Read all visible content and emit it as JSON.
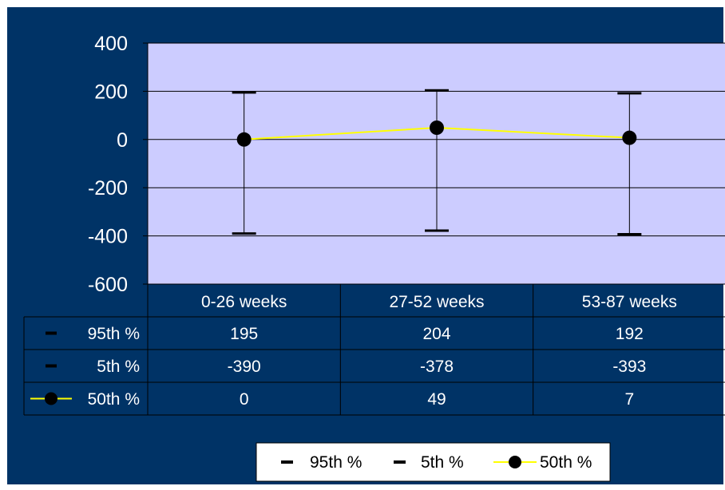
{
  "colors": {
    "background": "#003366",
    "plot_area": "#CCCCFF",
    "gridline": "#000000",
    "series_line": "#FFFF00",
    "marker": "#000000",
    "text": "#FFFFFF",
    "legend_bg": "#FFFFFF",
    "legend_text": "#000000"
  },
  "chart_data": {
    "type": "line",
    "title": "",
    "xlabel": "",
    "ylabel": "",
    "ylim": [
      -600,
      400
    ],
    "yticks": [
      "400",
      "200",
      "0",
      "-200",
      "-400",
      "-600"
    ],
    "grid": true,
    "categories": [
      "0-26 weeks",
      "27-52 weeks",
      "53-87 weeks"
    ],
    "series": [
      {
        "name": "95th %",
        "values": [
          195,
          204,
          192
        ],
        "display": [
          "195",
          "204",
          "192"
        ],
        "marker": "dash"
      },
      {
        "name": "5th %",
        "values": [
          -390,
          -378,
          -393
        ],
        "display": [
          "-390",
          "-378",
          "-393"
        ],
        "marker": "dash"
      },
      {
        "name": "50th %",
        "values": [
          0,
          49,
          7
        ],
        "display": [
          "0",
          "49",
          "7"
        ],
        "marker": "circle",
        "line": true
      }
    ],
    "data_table": true,
    "legend_position": "bottom"
  }
}
